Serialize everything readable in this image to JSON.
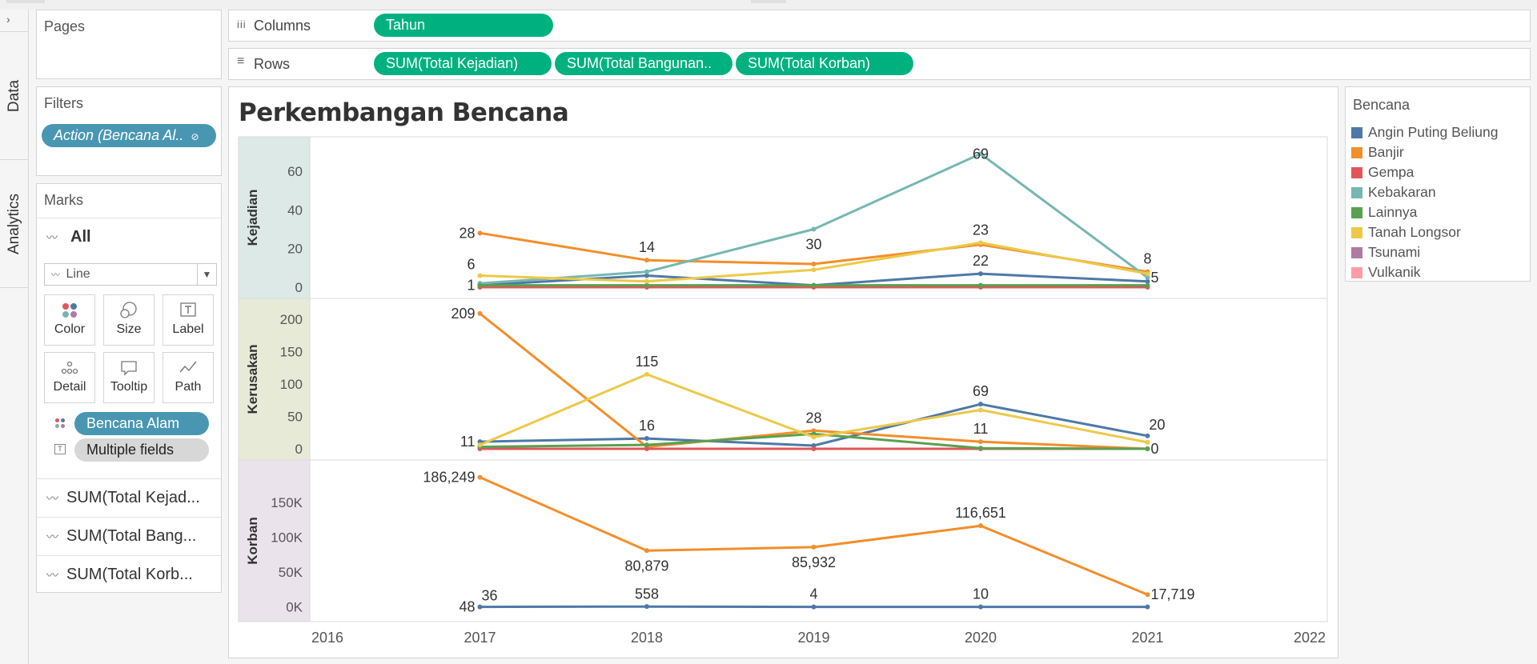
{
  "sidebar": {
    "expand_glyph": "›",
    "tab_data": "Data",
    "tab_analytics": "Analytics"
  },
  "pages": {
    "title": "Pages"
  },
  "filters": {
    "title": "Filters",
    "pill": "Action (Bencana Al.."
  },
  "marks": {
    "title": "Marks",
    "all_label": "All",
    "mark_type": "Line",
    "buttons": {
      "color": "Color",
      "size": "Size",
      "label": "Label",
      "detail": "Detail",
      "tooltip": "Tooltip",
      "path": "Path"
    },
    "color_field": "Bencana Alam",
    "label_field": "Multiple fields",
    "measures": [
      "SUM(Total Kejad...",
      "SUM(Total Bang...",
      "SUM(Total Korb..."
    ]
  },
  "shelves": {
    "columns_label": "Columns",
    "rows_label": "Rows",
    "columns_pills": [
      "Tahun"
    ],
    "rows_pills": [
      "SUM(Total Kejadian)",
      "SUM(Total Bangunan..",
      "SUM(Total Korban)"
    ]
  },
  "legend": {
    "title": "Bencana",
    "items": [
      {
        "name": "Angin Puting Beliung",
        "color": "#4e79a7"
      },
      {
        "name": "Banjir",
        "color": "#f28e2b"
      },
      {
        "name": "Gempa",
        "color": "#e15759"
      },
      {
        "name": "Kebakaran",
        "color": "#76b7b2"
      },
      {
        "name": "Lainnya",
        "color": "#59a14f"
      },
      {
        "name": "Tanah Longsor",
        "color": "#edc948"
      },
      {
        "name": "Tsunami",
        "color": "#b07aa1"
      },
      {
        "name": "Vulkanik",
        "color": "#ff9da7"
      }
    ]
  },
  "chart_data": {
    "type": "line",
    "title": "Perkembangan Bencana",
    "x_ticks": [
      "2016",
      "2017",
      "2018",
      "2019",
      "2020",
      "2021",
      "2022"
    ],
    "xlim": [
      2016,
      2022
    ],
    "panes": [
      {
        "label": "Kejadian",
        "band_color": "#dce9e7",
        "ylim": [
          0,
          72
        ],
        "y_ticks": [
          {
            "v": 0,
            "t": "0"
          },
          {
            "v": 20,
            "t": "20"
          },
          {
            "v": 40,
            "t": "40"
          },
          {
            "v": 60,
            "t": "60"
          }
        ],
        "series": [
          {
            "name": "Angin Puting Beliung",
            "color": "#4e79a7",
            "x": [
              2017,
              2018,
              2019,
              2020,
              2021
            ],
            "y": [
              1,
              6,
              1,
              7,
              3
            ]
          },
          {
            "name": "Banjir",
            "color": "#f28e2b",
            "x": [
              2017,
              2018,
              2019,
              2020,
              2021
            ],
            "y": [
              28,
              14,
              12,
              22,
              8
            ]
          },
          {
            "name": "Gempa",
            "color": "#e15759",
            "x": [
              2017,
              2018,
              2019,
              2020,
              2021
            ],
            "y": [
              0,
              0,
              0,
              0,
              0
            ]
          },
          {
            "name": "Kebakaran",
            "color": "#76b7b2",
            "x": [
              2017,
              2018,
              2019,
              2020,
              2021
            ],
            "y": [
              2,
              8,
              30,
              69,
              5
            ]
          },
          {
            "name": "Lainnya",
            "color": "#59a14f",
            "x": [
              2017,
              2018,
              2019,
              2020,
              2021
            ],
            "y": [
              1,
              1,
              1,
              1,
              1
            ]
          },
          {
            "name": "Tanah Longsor",
            "color": "#edc948",
            "x": [
              2017,
              2018,
              2019,
              2020,
              2021
            ],
            "y": [
              6,
              3,
              9,
              23,
              7
            ]
          }
        ],
        "labels": [
          {
            "x": 2017,
            "y": 28,
            "t": "28",
            "pos": "left"
          },
          {
            "x": 2017,
            "y": 6,
            "t": "6",
            "pos": "upleft"
          },
          {
            "x": 2017,
            "y": 1,
            "t": "1",
            "pos": "left"
          },
          {
            "x": 2018,
            "y": 14,
            "t": "14",
            "pos": "above"
          },
          {
            "x": 2019,
            "y": 30,
            "t": "30",
            "pos": "below"
          },
          {
            "x": 2020,
            "y": 69,
            "t": "69",
            "pos": "at"
          },
          {
            "x": 2020,
            "y": 23,
            "t": "23",
            "pos": "above"
          },
          {
            "x": 2020,
            "y": 7,
            "t": "22",
            "pos": "above"
          },
          {
            "x": 2021,
            "y": 8,
            "t": "8",
            "pos": "above"
          },
          {
            "x": 2021,
            "y": 5,
            "t": "5",
            "pos": "right"
          }
        ]
      },
      {
        "label": "Kerusakan",
        "band_color": "#e6ead7",
        "ylim": [
          0,
          215
        ],
        "y_ticks": [
          {
            "v": 0,
            "t": "0"
          },
          {
            "v": 50,
            "t": "50"
          },
          {
            "v": 100,
            "t": "100"
          },
          {
            "v": 150,
            "t": "150"
          },
          {
            "v": 200,
            "t": "200"
          }
        ],
        "series": [
          {
            "name": "Angin Puting Beliung",
            "color": "#4e79a7",
            "x": [
              2017,
              2018,
              2019,
              2020,
              2021
            ],
            "y": [
              11,
              16,
              5,
              69,
              20
            ]
          },
          {
            "name": "Banjir",
            "color": "#f28e2b",
            "x": [
              2017,
              2018,
              2019,
              2020,
              2021
            ],
            "y": [
              209,
              3,
              28,
              11,
              0
            ]
          },
          {
            "name": "Gempa",
            "color": "#e15759",
            "x": [
              2017,
              2018,
              2019,
              2020,
              2021
            ],
            "y": [
              0,
              0,
              0,
              0,
              0
            ]
          },
          {
            "name": "Lainnya",
            "color": "#59a14f",
            "x": [
              2017,
              2018,
              2019,
              2020,
              2021
            ],
            "y": [
              3,
              6,
              23,
              1,
              0
            ]
          },
          {
            "name": "Tanah Longsor",
            "color": "#edc948",
            "x": [
              2017,
              2018,
              2019,
              2020,
              2021
            ],
            "y": [
              6,
              115,
              18,
              60,
              10
            ]
          }
        ],
        "labels": [
          {
            "x": 2017,
            "y": 209,
            "t": "209",
            "pos": "left"
          },
          {
            "x": 2017,
            "y": 11,
            "t": "11",
            "pos": "left"
          },
          {
            "x": 2018,
            "y": 115,
            "t": "115",
            "pos": "above"
          },
          {
            "x": 2018,
            "y": 16,
            "t": "16",
            "pos": "above"
          },
          {
            "x": 2019,
            "y": 28,
            "t": "28",
            "pos": "above"
          },
          {
            "x": 2020,
            "y": 69,
            "t": "69",
            "pos": "above"
          },
          {
            "x": 2020,
            "y": 11,
            "t": "11",
            "pos": "above"
          },
          {
            "x": 2021,
            "y": 20,
            "t": "20",
            "pos": "aboveright"
          },
          {
            "x": 2021,
            "y": 0,
            "t": "0",
            "pos": "right"
          }
        ]
      },
      {
        "label": "Korban",
        "band_color": "#ebe3ec",
        "ylim": [
          -5000,
          195000
        ],
        "y_ticks": [
          {
            "v": 0,
            "t": "0K"
          },
          {
            "v": 50000,
            "t": "50K"
          },
          {
            "v": 100000,
            "t": "100K"
          },
          {
            "v": 150000,
            "t": "150K"
          }
        ],
        "series": [
          {
            "name": "Angin Puting Beliung",
            "color": "#4e79a7",
            "x": [
              2017,
              2018,
              2019,
              2020,
              2021
            ],
            "y": [
              48,
              558,
              4,
              10,
              0
            ]
          },
          {
            "name": "Banjir",
            "color": "#f28e2b",
            "x": [
              2017,
              2018,
              2019,
              2020,
              2021
            ],
            "y": [
              186249,
              80879,
              85932,
              116651,
              17719
            ]
          }
        ],
        "labels": [
          {
            "x": 2017,
            "y": 186249,
            "t": "186,249",
            "pos": "left"
          },
          {
            "x": 2017,
            "y": 0,
            "t": "48",
            "pos": "left"
          },
          {
            "x": 2017,
            "y": 0,
            "t": "36",
            "pos": "aboveright"
          },
          {
            "x": 2018,
            "y": 80879,
            "t": "80,879",
            "pos": "below"
          },
          {
            "x": 2018,
            "y": 0,
            "t": "558",
            "pos": "above"
          },
          {
            "x": 2019,
            "y": 85932,
            "t": "85,932",
            "pos": "below"
          },
          {
            "x": 2019,
            "y": 0,
            "t": "4",
            "pos": "above"
          },
          {
            "x": 2020,
            "y": 116651,
            "t": "116,651",
            "pos": "above"
          },
          {
            "x": 2020,
            "y": 0,
            "t": "10",
            "pos": "above"
          },
          {
            "x": 2021,
            "y": 17719,
            "t": "17,719",
            "pos": "right"
          }
        ]
      }
    ]
  }
}
